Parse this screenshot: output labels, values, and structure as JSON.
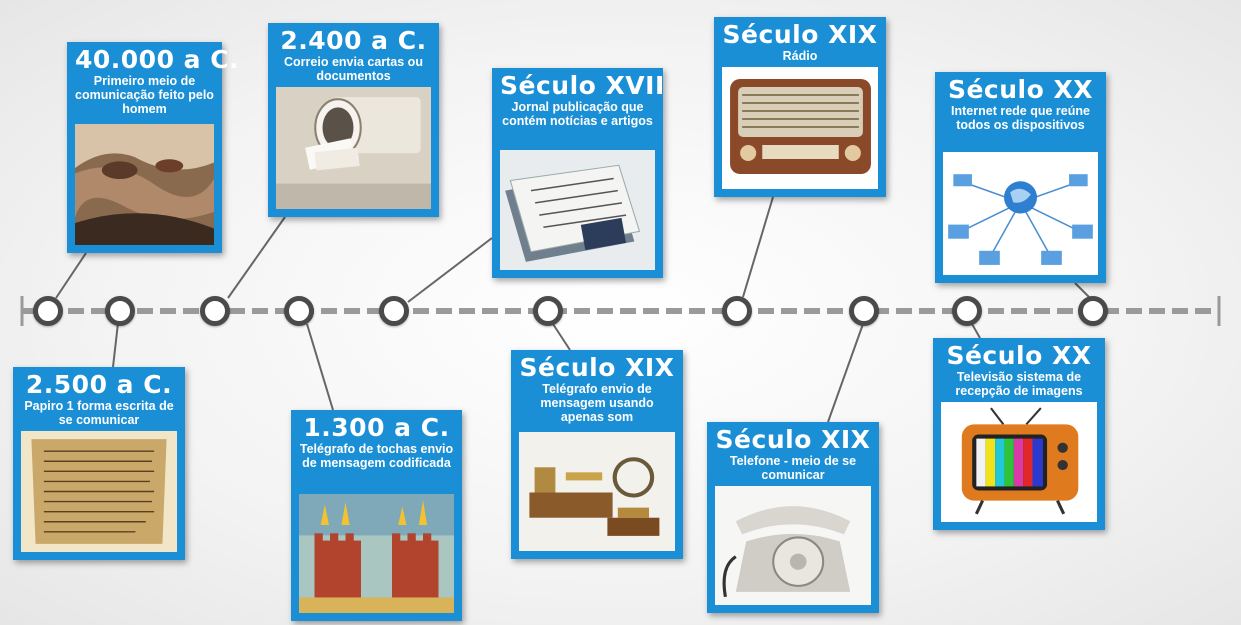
{
  "timeline": {
    "events": [
      {
        "id": "e40000",
        "date": "40.000 a C.",
        "desc": "Primeiro meio de comunicação feito pelo homem",
        "icon": "cave-painting-icon"
      },
      {
        "id": "e2500",
        "date": "2.500 a C.",
        "desc": "Papiro 1 forma escrita de se comunicar",
        "icon": "papyrus-icon"
      },
      {
        "id": "e2400",
        "date": "2.400 a C.",
        "desc": "Correio envia cartas ou documentos",
        "icon": "mailbox-icon"
      },
      {
        "id": "e1300",
        "date": "1.300 a C.",
        "desc": "Telégrafo de tochas envio de mensagem codificada",
        "icon": "torch-telegraph-icon"
      },
      {
        "id": "e17",
        "date": "Século XVII",
        "desc": "Jornal publicação que contém notícias e artigos",
        "icon": "newspaper-icon"
      },
      {
        "id": "e19tel",
        "date": "Século XIX",
        "desc": "Telégrafo envio de mensagem usando apenas som",
        "icon": "telegraph-icon"
      },
      {
        "id": "e19radio",
        "date": "Século XIX",
        "desc": "Rádio",
        "icon": "radio-icon"
      },
      {
        "id": "e19phone",
        "date": "Século XIX",
        "desc": "Telefone -  meio de se comunicar",
        "icon": "telephone-icon"
      },
      {
        "id": "e20net",
        "date": "Século XX",
        "desc": "Internet rede que reúne todos os dispositivos",
        "icon": "internet-network-icon"
      },
      {
        "id": "e20tv",
        "date": "Século XX",
        "desc": "Televisão sistema de recepção de imagens",
        "icon": "television-icon"
      }
    ]
  }
}
